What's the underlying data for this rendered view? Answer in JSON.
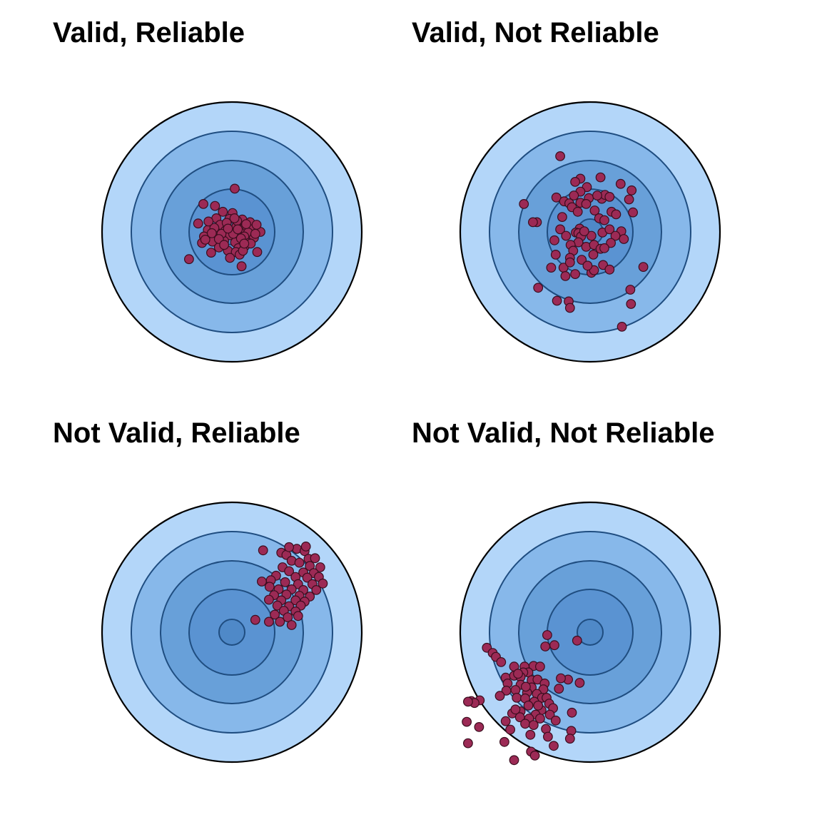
{
  "colors": {
    "ring_outer": "#b3d6f9",
    "ring_2": "#87b8ea",
    "ring_3": "#68a0d9",
    "ring_4": "#5a93d2",
    "bullseye": "#4f89c8",
    "inner_ring_stroke": "#1f4d80",
    "outer_stroke": "#000000",
    "shot_fill": "#9c2a55",
    "shot_stroke": "#3a0d1e"
  },
  "panels": [
    {
      "id": "valid-reliable",
      "title": "Valid, Reliable",
      "shots": [
        [
          0.22,
          3.33
        ],
        [
          -2.2,
          2.15
        ],
        [
          -0.7,
          1.55
        ],
        [
          0.05,
          1.45
        ],
        [
          -1.2,
          1.05
        ],
        [
          -0.2,
          1.0
        ],
        [
          0.8,
          0.95
        ],
        [
          1.4,
          0.75
        ],
        [
          -2.6,
          0.65
        ],
        [
          -0.9,
          0.55
        ],
        [
          0.35,
          0.45
        ],
        [
          1.0,
          0.35
        ],
        [
          1.55,
          0.2
        ],
        [
          -1.85,
          0.15
        ],
        [
          -0.5,
          0.1
        ],
        [
          0.6,
          0.0
        ],
        [
          1.25,
          -0.05
        ],
        [
          2.2,
          0.0
        ],
        [
          -2.15,
          -0.35
        ],
        [
          -1.1,
          -0.3
        ],
        [
          -0.15,
          -0.25
        ],
        [
          0.95,
          -0.35
        ],
        [
          1.7,
          -0.45
        ],
        [
          -1.5,
          -0.75
        ],
        [
          -0.6,
          -0.7
        ],
        [
          0.25,
          -0.8
        ],
        [
          1.3,
          -0.85
        ],
        [
          -2.3,
          -0.85
        ],
        [
          -1.0,
          -1.2
        ],
        [
          0.5,
          -1.25
        ],
        [
          1.0,
          -1.1
        ],
        [
          -0.3,
          -1.45
        ],
        [
          -1.6,
          -1.6
        ],
        [
          0.3,
          -1.55
        ],
        [
          0.6,
          -1.75
        ],
        [
          1.95,
          -1.55
        ],
        [
          -0.4,
          0.7
        ],
        [
          0.4,
          0.85
        ],
        [
          -1.35,
          0.3
        ],
        [
          0.1,
          -0.15
        ],
        [
          1.45,
          -0.9
        ],
        [
          -0.8,
          -0.15
        ],
        [
          0.2,
          1.05
        ],
        [
          -1.8,
          0.8
        ],
        [
          0.7,
          -0.5
        ],
        [
          -0.3,
          0.25
        ],
        [
          -2.05,
          -0.6
        ],
        [
          1.1,
          0.6
        ],
        [
          -1.0,
          -0.55
        ],
        [
          -0.6,
          -1.0
        ],
        [
          0.85,
          -1.45
        ],
        [
          -3.3,
          -2.1
        ],
        [
          0.75,
          -2.65
        ],
        [
          -1.3,
          2.0
        ],
        [
          1.9,
          0.55
        ],
        [
          -0.15,
          -2.0
        ],
        [
          0.45,
          0.2
        ],
        [
          -1.55,
          -0.1
        ],
        [
          0.95,
          -0.9
        ],
        [
          1.8,
          -0.15
        ]
      ]
    },
    {
      "id": "valid-not-reliable",
      "title": "Valid, Not Reliable",
      "shots": [
        [
          -2.3,
          5.83
        ],
        [
          -0.75,
          4.1
        ],
        [
          0.8,
          4.2
        ],
        [
          -1.15,
          3.85
        ],
        [
          2.35,
          3.7
        ],
        [
          -0.25,
          3.45
        ],
        [
          3.2,
          3.2
        ],
        [
          -0.75,
          3.1
        ],
        [
          -2.6,
          2.65
        ],
        [
          -1.25,
          2.8
        ],
        [
          -0.1,
          2.6
        ],
        [
          0.9,
          2.55
        ],
        [
          1.15,
          2.85
        ],
        [
          1.5,
          2.7
        ],
        [
          0.55,
          2.8
        ],
        [
          -2.0,
          2.35
        ],
        [
          -1.6,
          2.2
        ],
        [
          -0.75,
          2.25
        ],
        [
          -0.3,
          2.15
        ],
        [
          3.0,
          2.5
        ],
        [
          -5.1,
          2.15
        ],
        [
          -1.4,
          1.9
        ],
        [
          -0.95,
          1.55
        ],
        [
          0.35,
          1.65
        ],
        [
          1.65,
          1.55
        ],
        [
          2.0,
          1.35
        ],
        [
          3.3,
          1.5
        ],
        [
          -2.15,
          1.15
        ],
        [
          0.7,
          1.05
        ],
        [
          -2.3,
          0.2
        ],
        [
          -0.8,
          0.25
        ],
        [
          -4.1,
          0.75
        ],
        [
          -4.4,
          0.75
        ],
        [
          -1.1,
          -0.05
        ],
        [
          -0.9,
          -0.1
        ],
        [
          0.95,
          -0.05
        ],
        [
          -1.85,
          -0.3
        ],
        [
          -0.7,
          -0.35
        ],
        [
          0.1,
          -0.3
        ],
        [
          -0.45,
          0.05
        ],
        [
          1.5,
          0.2
        ],
        [
          2.4,
          0.05
        ],
        [
          1.95,
          -0.3
        ],
        [
          -0.9,
          -0.8
        ],
        [
          -0.3,
          -1.15
        ],
        [
          -1.5,
          -1.0
        ],
        [
          0.3,
          -1.0
        ],
        [
          -2.75,
          -0.65
        ],
        [
          0.8,
          -1.3
        ],
        [
          1.6,
          -0.85
        ],
        [
          2.6,
          -0.55
        ],
        [
          -1.3,
          -1.45
        ],
        [
          0.25,
          -1.75
        ],
        [
          -1.55,
          -2.0
        ],
        [
          -2.65,
          -1.75
        ],
        [
          -0.65,
          -2.15
        ],
        [
          1.1,
          -1.25
        ],
        [
          -2.05,
          -2.75
        ],
        [
          -1.55,
          -2.35
        ],
        [
          1.0,
          -2.55
        ],
        [
          -3.0,
          -2.75
        ],
        [
          -1.15,
          -3.25
        ],
        [
          1.5,
          -2.9
        ],
        [
          0.1,
          -3.15
        ],
        [
          -1.9,
          -3.4
        ],
        [
          0.3,
          -2.95
        ],
        [
          -4.0,
          -4.3
        ],
        [
          3.1,
          -4.45
        ],
        [
          -2.55,
          -5.3
        ],
        [
          -1.65,
          -5.35
        ],
        [
          3.15,
          -5.55
        ],
        [
          -1.55,
          -5.85
        ],
        [
          2.45,
          -7.3
        ],
        [
          4.1,
          -2.7
        ],
        [
          1.1,
          0.9
        ],
        [
          -0.2,
          -2.6
        ]
      ]
    },
    {
      "id": "not-valid-reliable",
      "title": "Not Valid, Reliable",
      "shots": [
        [
          3.8,
          6.12
        ],
        [
          5.0,
          6.42
        ],
        [
          5.6,
          6.25
        ],
        [
          4.2,
          5.95
        ],
        [
          5.9,
          5.65
        ],
        [
          6.4,
          5.7
        ],
        [
          4.6,
          5.5
        ],
        [
          5.2,
          5.35
        ],
        [
          6.0,
          5.1
        ],
        [
          6.8,
          5.0
        ],
        [
          3.9,
          5.0
        ],
        [
          4.4,
          4.7
        ],
        [
          5.5,
          4.6
        ],
        [
          6.3,
          4.55
        ],
        [
          3.4,
          4.35
        ],
        [
          4.9,
          4.25
        ],
        [
          5.8,
          4.2
        ],
        [
          6.7,
          4.25
        ],
        [
          3.0,
          4.0
        ],
        [
          4.1,
          3.85
        ],
        [
          5.1,
          3.7
        ],
        [
          6.2,
          3.7
        ],
        [
          2.9,
          3.5
        ],
        [
          3.6,
          3.3
        ],
        [
          4.6,
          3.3
        ],
        [
          5.5,
          3.25
        ],
        [
          6.5,
          3.25
        ],
        [
          3.25,
          2.85
        ],
        [
          4.2,
          2.9
        ],
        [
          5.2,
          2.8
        ],
        [
          6.0,
          2.75
        ],
        [
          3.8,
          2.45
        ],
        [
          4.9,
          2.45
        ],
        [
          5.6,
          2.35
        ],
        [
          2.85,
          2.5
        ],
        [
          3.5,
          2.05
        ],
        [
          4.4,
          2.0
        ],
        [
          5.3,
          2.05
        ],
        [
          4.0,
          1.65
        ],
        [
          4.9,
          1.6
        ],
        [
          3.3,
          1.35
        ],
        [
          4.3,
          1.15
        ],
        [
          5.1,
          1.25
        ],
        [
          4.6,
          0.55
        ],
        [
          3.7,
          0.8
        ],
        [
          1.8,
          0.95
        ],
        [
          2.85,
          0.8
        ],
        [
          2.3,
          3.9
        ],
        [
          7.0,
          3.75
        ],
        [
          2.4,
          6.3
        ],
        [
          5.7,
          6.6
        ],
        [
          4.4,
          6.55
        ]
      ]
    },
    {
      "id": "not-valid-not-reliable",
      "title": "Not Valid, Not Reliable",
      "shots": [
        [
          -3.3,
          -0.22
        ],
        [
          -1.0,
          -0.65
        ],
        [
          -2.75,
          -1.0
        ],
        [
          -3.45,
          -1.1
        ],
        [
          -7.95,
          -1.2
        ],
        [
          -7.5,
          -1.6
        ],
        [
          -7.25,
          -1.9
        ],
        [
          -6.85,
          -2.3
        ],
        [
          -5.85,
          -2.65
        ],
        [
          -5.05,
          -2.65
        ],
        [
          -4.35,
          -2.6
        ],
        [
          -3.85,
          -2.65
        ],
        [
          -4.75,
          -3.1
        ],
        [
          -5.15,
          -3.1
        ],
        [
          -6.5,
          -3.5
        ],
        [
          -5.85,
          -3.35
        ],
        [
          -5.35,
          -3.45
        ],
        [
          -4.5,
          -3.7
        ],
        [
          -4.05,
          -3.65
        ],
        [
          -3.5,
          -3.95
        ],
        [
          -1.7,
          -3.65
        ],
        [
          -0.8,
          -3.9
        ],
        [
          -6.35,
          -3.95
        ],
        [
          -5.35,
          -4.05
        ],
        [
          -4.5,
          -4.25
        ],
        [
          -3.6,
          -4.4
        ],
        [
          -2.4,
          -4.35
        ],
        [
          -5.75,
          -4.45
        ],
        [
          -4.1,
          -4.75
        ],
        [
          -4.85,
          -4.65
        ],
        [
          -6.45,
          -4.5
        ],
        [
          -9.15,
          -5.3
        ],
        [
          -8.5,
          -5.25
        ],
        [
          -8.9,
          -5.45
        ],
        [
          -9.4,
          -5.35
        ],
        [
          -6.95,
          -4.9
        ],
        [
          -5.65,
          -5.05
        ],
        [
          -5.0,
          -5.1
        ],
        [
          -3.7,
          -5.05
        ],
        [
          -3.35,
          -5.05
        ],
        [
          -4.3,
          -5.35
        ],
        [
          -3.15,
          -5.5
        ],
        [
          -4.75,
          -5.65
        ],
        [
          -3.75,
          -6.0
        ],
        [
          -2.85,
          -5.85
        ],
        [
          -5.35,
          -6.1
        ],
        [
          -6.0,
          -6.25
        ],
        [
          -4.2,
          -6.35
        ],
        [
          -3.1,
          -6.35
        ],
        [
          -1.4,
          -6.2
        ],
        [
          -4.7,
          -6.65
        ],
        [
          -3.85,
          -6.65
        ],
        [
          -5.4,
          -6.55
        ],
        [
          -2.65,
          -6.8
        ],
        [
          -6.5,
          -6.85
        ],
        [
          -5.0,
          -7.05
        ],
        [
          -4.35,
          -7.15
        ],
        [
          -3.4,
          -7.45
        ],
        [
          -9.5,
          -6.9
        ],
        [
          -8.55,
          -7.3
        ],
        [
          -4.6,
          -7.9
        ],
        [
          -1.45,
          -7.6
        ],
        [
          -1.55,
          -8.2
        ],
        [
          -3.25,
          -8.05
        ],
        [
          -2.8,
          -8.75
        ],
        [
          -6.6,
          -8.45
        ],
        [
          -9.4,
          -8.55
        ],
        [
          -4.55,
          -9.2
        ],
        [
          -4.25,
          -9.5
        ],
        [
          -5.85,
          -9.85
        ],
        [
          -6.15,
          -7.5
        ],
        [
          -5.75,
          -5.95
        ],
        [
          -4.0,
          -5.65
        ],
        [
          -2.25,
          -3.55
        ],
        [
          -5.55,
          -3.2
        ],
        [
          -4.95,
          -4.2
        ]
      ]
    }
  ]
}
